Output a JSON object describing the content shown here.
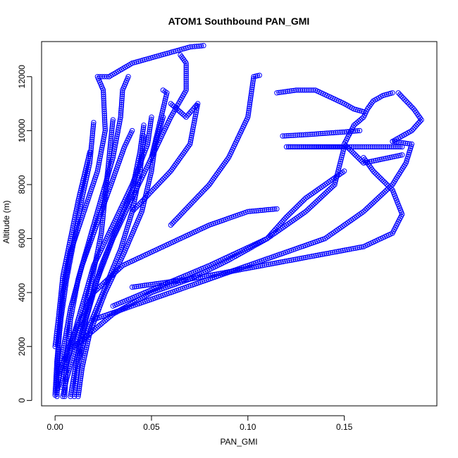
{
  "chart_data": {
    "type": "scatter",
    "title": "ATOM1 Southbound PAN_GMI",
    "xlabel": "PAN_GMI",
    "ylabel": "Altitude (m)",
    "xlim": [
      -0.007,
      0.198
    ],
    "ylim": [
      -200,
      13300
    ],
    "x_ticks": [
      0.0,
      0.05,
      0.1,
      0.15
    ],
    "x_tick_labels": [
      "0.00",
      "0.05",
      "0.10",
      "0.15"
    ],
    "y_ticks": [
      0,
      2000,
      4000,
      6000,
      8000,
      10000,
      12000
    ],
    "y_tick_labels": [
      "0",
      "2000",
      "4000",
      "6000",
      "8000",
      "10000",
      "12000"
    ],
    "grid": false,
    "legend": "none",
    "marker": "open-circle",
    "connect_points": true,
    "series_color": "#0000ff",
    "series": [
      {
        "points": [
          [
            0.001,
            150
          ],
          [
            0.001,
            1000
          ],
          [
            0.002,
            2500
          ],
          [
            0.004,
            4000
          ],
          [
            0.008,
            5500
          ],
          [
            0.015,
            7000
          ],
          [
            0.022,
            8500
          ],
          [
            0.026,
            10000
          ],
          [
            0.025,
            11500
          ],
          [
            0.022,
            12000
          ],
          [
            0.028,
            12000
          ]
        ]
      },
      {
        "points": [
          [
            0.005,
            150
          ],
          [
            0.006,
            1500
          ],
          [
            0.008,
            3000
          ],
          [
            0.012,
            4500
          ],
          [
            0.018,
            6000
          ],
          [
            0.024,
            7500
          ],
          [
            0.03,
            9000
          ],
          [
            0.034,
            10500
          ],
          [
            0.035,
            11500
          ],
          [
            0.038,
            12000
          ]
        ]
      },
      {
        "points": [
          [
            0.01,
            150
          ],
          [
            0.012,
            1500
          ],
          [
            0.016,
            3000
          ],
          [
            0.022,
            4500
          ],
          [
            0.03,
            6000
          ],
          [
            0.04,
            7500
          ],
          [
            0.05,
            9000
          ],
          [
            0.055,
            10500
          ],
          [
            0.058,
            11400
          ],
          [
            0.056,
            11500
          ]
        ]
      },
      {
        "points": [
          [
            0.012,
            150
          ],
          [
            0.014,
            1200
          ],
          [
            0.018,
            2500
          ],
          [
            0.026,
            4000
          ],
          [
            0.036,
            5500
          ],
          [
            0.045,
            7000
          ],
          [
            0.05,
            8500
          ],
          [
            0.052,
            9500
          ],
          [
            0.056,
            10500
          ]
        ]
      },
      {
        "points": [
          [
            0.003,
            500
          ],
          [
            0.008,
            2000
          ],
          [
            0.014,
            3500
          ],
          [
            0.02,
            5000
          ],
          [
            0.03,
            6500
          ],
          [
            0.04,
            8000
          ],
          [
            0.048,
            9500
          ],
          [
            0.05,
            10500
          ]
        ]
      },
      {
        "points": [
          [
            0.002,
            1000
          ],
          [
            0.01,
            2500
          ],
          [
            0.02,
            4000
          ],
          [
            0.035,
            5000
          ],
          [
            0.05,
            5500
          ],
          [
            0.065,
            6000
          ],
          [
            0.08,
            6500
          ],
          [
            0.1,
            7000
          ],
          [
            0.115,
            7100
          ]
        ]
      },
      {
        "points": [
          [
            0.01,
            2000
          ],
          [
            0.03,
            3200
          ],
          [
            0.05,
            4000
          ],
          [
            0.07,
            4500
          ],
          [
            0.09,
            5200
          ],
          [
            0.11,
            6000
          ],
          [
            0.12,
            6800
          ],
          [
            0.13,
            7500
          ],
          [
            0.15,
            8500
          ]
        ]
      },
      {
        "points": [
          [
            0.04,
            4200
          ],
          [
            0.07,
            4500
          ],
          [
            0.1,
            4900
          ],
          [
            0.13,
            5300
          ],
          [
            0.16,
            5700
          ],
          [
            0.175,
            6200
          ],
          [
            0.18,
            6900
          ],
          [
            0.175,
            7800
          ],
          [
            0.165,
            8500
          ],
          [
            0.16,
            9000
          ]
        ]
      },
      {
        "points": [
          [
            0.02,
            3000
          ],
          [
            0.06,
            4000
          ],
          [
            0.1,
            5000
          ],
          [
            0.14,
            6000
          ],
          [
            0.16,
            7000
          ],
          [
            0.175,
            8000
          ],
          [
            0.182,
            8800
          ],
          [
            0.185,
            9500
          ],
          [
            0.175,
            9600
          ]
        ]
      },
      {
        "points": [
          [
            0.03,
            3500
          ],
          [
            0.08,
            5000
          ],
          [
            0.11,
            6000
          ],
          [
            0.13,
            7000
          ],
          [
            0.145,
            8000
          ],
          [
            0.15,
            9400
          ],
          [
            0.12,
            9400
          ],
          [
            0.18,
            9400
          ]
        ]
      },
      {
        "points": [
          [
            0.06,
            6500
          ],
          [
            0.08,
            8000
          ],
          [
            0.09,
            9000
          ],
          [
            0.1,
            10500
          ],
          [
            0.103,
            12000
          ],
          [
            0.106,
            12050
          ]
        ]
      },
      {
        "points": [
          [
            0.05,
            9000
          ],
          [
            0.06,
            10500
          ],
          [
            0.064,
            11000
          ],
          [
            0.068,
            11500
          ],
          [
            0.068,
            12500
          ],
          [
            0.065,
            12800
          ]
        ]
      },
      {
        "points": [
          [
            0.028,
            12000
          ],
          [
            0.04,
            12500
          ],
          [
            0.055,
            12800
          ],
          [
            0.07,
            13100
          ],
          [
            0.077,
            13150
          ]
        ]
      },
      {
        "points": [
          [
            0.04,
            7000
          ],
          [
            0.06,
            8500
          ],
          [
            0.07,
            9500
          ],
          [
            0.074,
            11000
          ],
          [
            0.068,
            10500
          ],
          [
            0.06,
            11000
          ]
        ]
      },
      {
        "points": [
          [
            0.115,
            11400
          ],
          [
            0.125,
            11500
          ],
          [
            0.135,
            11500
          ],
          [
            0.15,
            11000
          ],
          [
            0.155,
            10800
          ],
          [
            0.16,
            10700
          ]
        ]
      },
      {
        "points": [
          [
            0.118,
            9800
          ],
          [
            0.13,
            9850
          ],
          [
            0.14,
            9900
          ],
          [
            0.15,
            9950
          ],
          [
            0.158,
            10000
          ]
        ]
      },
      {
        "points": [
          [
            0.175,
            11400
          ],
          [
            0.17,
            11300
          ],
          [
            0.165,
            11100
          ],
          [
            0.162,
            10800
          ],
          [
            0.16,
            10500
          ],
          [
            0.155,
            10200
          ],
          [
            0.15,
            9500
          ],
          [
            0.16,
            8800
          ],
          [
            0.18,
            9100
          ]
        ]
      },
      {
        "points": [
          [
            0.178,
            11400
          ],
          [
            0.182,
            11100
          ],
          [
            0.186,
            10800
          ],
          [
            0.19,
            10400
          ],
          [
            0.185,
            10000
          ],
          [
            0.175,
            9600
          ]
        ]
      },
      {
        "points": [
          [
            0.004,
            150
          ],
          [
            0.006,
            800
          ],
          [
            0.01,
            1800
          ],
          [
            0.015,
            3200
          ],
          [
            0.02,
            4800
          ],
          [
            0.024,
            6200
          ],
          [
            0.026,
            7600
          ],
          [
            0.028,
            9000
          ],
          [
            0.03,
            10400
          ]
        ]
      },
      {
        "points": [
          [
            0.008,
            150
          ],
          [
            0.01,
            1000
          ],
          [
            0.013,
            2200
          ],
          [
            0.018,
            3600
          ],
          [
            0.024,
            5000
          ],
          [
            0.032,
            6400
          ],
          [
            0.04,
            7800
          ],
          [
            0.044,
            9200
          ],
          [
            0.046,
            10200
          ]
        ]
      },
      {
        "points": [
          [
            0.0,
            200
          ],
          [
            0.001,
            1500
          ],
          [
            0.003,
            3000
          ],
          [
            0.006,
            4500
          ],
          [
            0.01,
            6000
          ],
          [
            0.014,
            7500
          ],
          [
            0.018,
            8800
          ],
          [
            0.02,
            10300
          ]
        ]
      },
      {
        "points": [
          [
            0.001,
            300
          ],
          [
            0.004,
            1800
          ],
          [
            0.008,
            3400
          ],
          [
            0.014,
            5000
          ],
          [
            0.022,
            6600
          ],
          [
            0.03,
            8200
          ],
          [
            0.036,
            9400
          ],
          [
            0.04,
            10000
          ]
        ]
      },
      {
        "points": [
          [
            0.012,
            1500
          ],
          [
            0.018,
            2800
          ],
          [
            0.026,
            4200
          ],
          [
            0.034,
            5600
          ],
          [
            0.04,
            7000
          ],
          [
            0.044,
            8400
          ],
          [
            0.046,
            9800
          ]
        ]
      },
      {
        "points": [
          [
            0.0,
            2000
          ],
          [
            0.002,
            3200
          ],
          [
            0.004,
            4600
          ],
          [
            0.008,
            6000
          ],
          [
            0.012,
            7400
          ],
          [
            0.016,
            8600
          ],
          [
            0.018,
            9200
          ]
        ]
      }
    ]
  }
}
